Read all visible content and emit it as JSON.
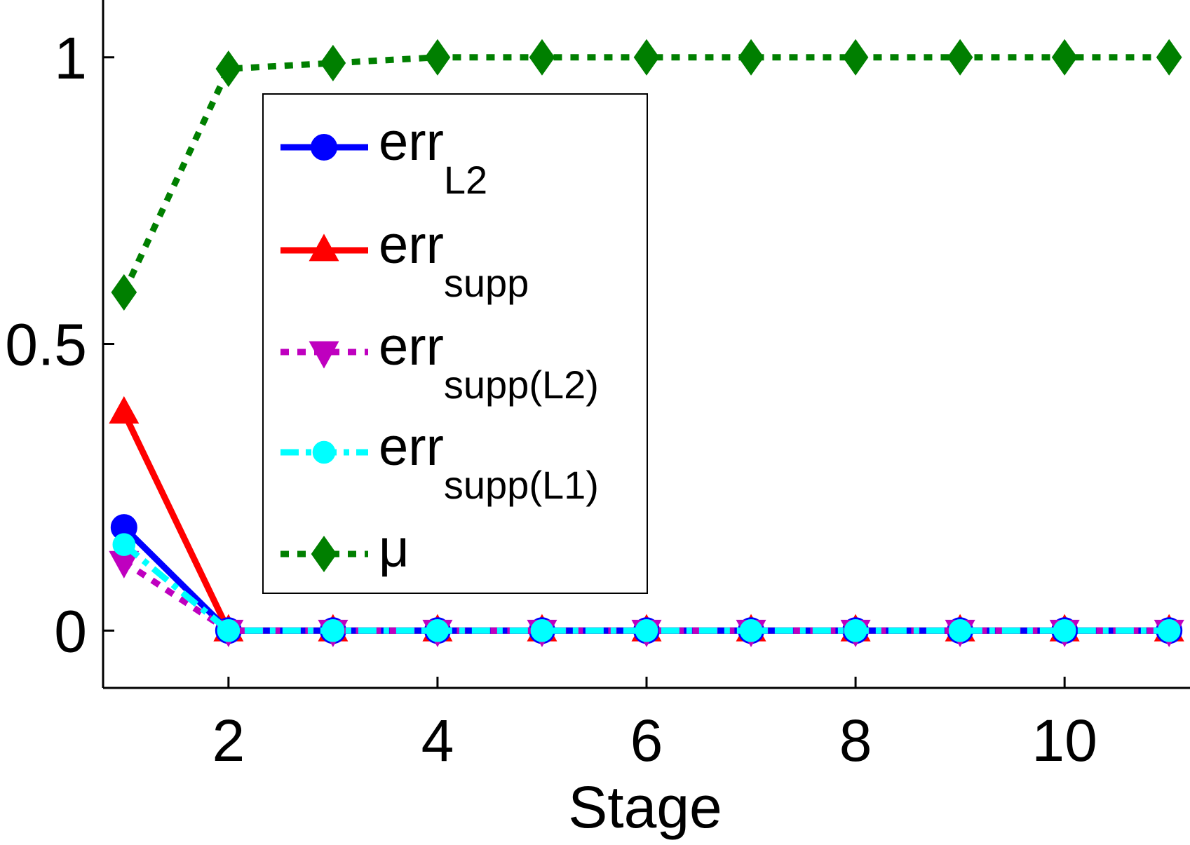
{
  "chart_data": {
    "type": "line",
    "xlabel": "Stage",
    "ylabel": "",
    "xlim": [
      0.8,
      11.2
    ],
    "ylim": [
      -0.1,
      1.1
    ],
    "xticks": [
      "2",
      "4",
      "6",
      "8",
      "10"
    ],
    "xtick_values": [
      2,
      4,
      6,
      8,
      10
    ],
    "yticks": [
      "0",
      "0.5",
      "1"
    ],
    "ytick_values": [
      0,
      0.5,
      1
    ],
    "grid": false,
    "legend_position": "upper-left-inside",
    "x": [
      1,
      2,
      3,
      4,
      5,
      6,
      7,
      8,
      9,
      10,
      11
    ],
    "series": [
      {
        "name": "err",
        "name_sub": "L2",
        "color": "#0000ff",
        "line_style": "solid",
        "marker": "circle",
        "values": [
          0.18,
          0,
          0,
          0,
          0,
          0,
          0,
          0,
          0,
          0,
          0
        ]
      },
      {
        "name": "err",
        "name_sub": "supp",
        "color": "#ff0000",
        "line_style": "solid",
        "marker": "triangle-up",
        "values": [
          0.38,
          0,
          0,
          0,
          0,
          0,
          0,
          0,
          0,
          0,
          0
        ]
      },
      {
        "name": "err",
        "name_sub": "supp(L2)",
        "color": "#bf00bf",
        "line_style": "dotted",
        "marker": "triangle-down",
        "values": [
          0.12,
          0,
          0,
          0,
          0,
          0,
          0,
          0,
          0,
          0,
          0
        ]
      },
      {
        "name": "err",
        "name_sub": "supp(L1)",
        "color": "#00ffff",
        "line_style": "dash-dot",
        "marker": "circle-small",
        "values": [
          0.15,
          0,
          0,
          0,
          0,
          0,
          0,
          0,
          0,
          0,
          0
        ]
      },
      {
        "name": "μ",
        "name_sub": "",
        "color": "#007f00",
        "line_style": "dotted",
        "marker": "diamond",
        "values": [
          0.59,
          0.98,
          0.99,
          1.0,
          1.0,
          1.0,
          1.0,
          1.0,
          1.0,
          1.0,
          1.0
        ]
      }
    ]
  }
}
